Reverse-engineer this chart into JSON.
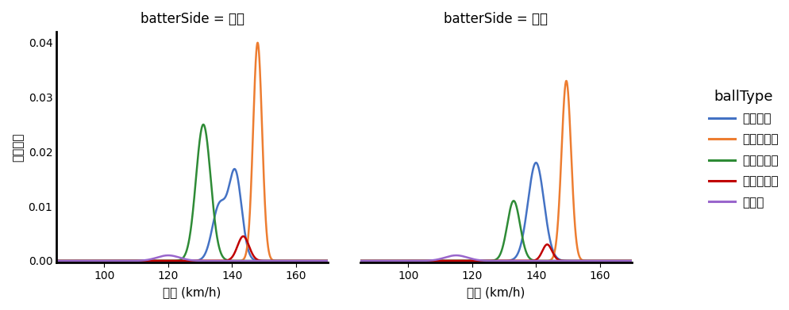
{
  "title_left": "batterSide = 右打",
  "title_right": "batterSide = 左打",
  "xlabel": "球速 (km/h)",
  "ylabel": "確率密度",
  "legend_title": "ballType",
  "xlim": [
    85,
    170
  ],
  "ylim": [
    -0.0003,
    0.042
  ],
  "xticks": [
    100,
    120,
    140,
    160
  ],
  "yticks": [
    0.0,
    0.01,
    0.02,
    0.03,
    0.04
  ],
  "ball_types": [
    "フォーク",
    "ストレート",
    "スライダー",
    "ツーシーム",
    "カーブ"
  ],
  "colors": [
    "#4472c4",
    "#ed7d31",
    "#2e8b36",
    "#c00000",
    "#9966cc"
  ],
  "right": {
    "フォーク": [
      {
        "mean": 136.0,
        "std": 2.2,
        "scale": 0.01
      },
      {
        "mean": 141.0,
        "std": 2.0,
        "scale": 0.016
      }
    ],
    "ストレート": [
      {
        "mean": 148.0,
        "std": 1.4,
        "scale": 0.04
      }
    ],
    "スライダー": [
      {
        "mean": 131.0,
        "std": 2.3,
        "scale": 0.025
      }
    ],
    "ツーシーム": [
      {
        "mean": 143.5,
        "std": 1.8,
        "scale": 0.0045
      }
    ],
    "カーブ": [
      {
        "mean": 120.0,
        "std": 3.5,
        "scale": 0.001
      }
    ]
  },
  "left": {
    "フォーク": [
      {
        "mean": 140.0,
        "std": 2.5,
        "scale": 0.018
      }
    ],
    "ストレート": [
      {
        "mean": 149.5,
        "std": 1.5,
        "scale": 0.033
      }
    ],
    "スライダー": [
      {
        "mean": 133.0,
        "std": 2.0,
        "scale": 0.011
      }
    ],
    "ツーシーム": [
      {
        "mean": 143.5,
        "std": 1.5,
        "scale": 0.003
      }
    ],
    "カーブ": [
      {
        "mean": 115.0,
        "std": 3.5,
        "scale": 0.001
      }
    ]
  },
  "background_color": "#ffffff",
  "figsize": [
    9.95,
    3.91
  ],
  "dpi": 100
}
